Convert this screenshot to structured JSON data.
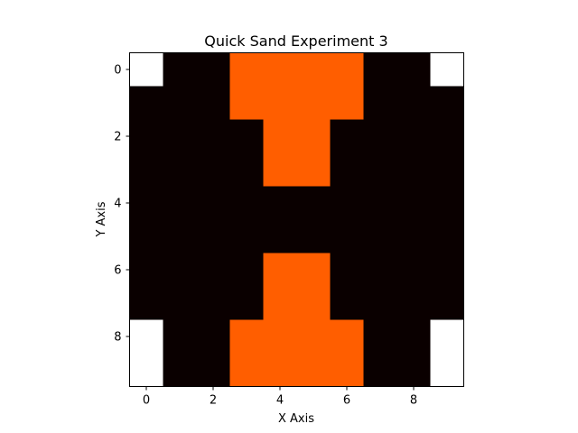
{
  "chart_data": {
    "type": "heatmap",
    "title": "Quick Sand Experiment 3",
    "xlabel": "X Axis",
    "ylabel": "Y Axis",
    "x_ticks": [
      0,
      2,
      4,
      6,
      8
    ],
    "y_ticks": [
      0,
      2,
      4,
      6,
      8
    ],
    "xlim": [
      -0.5,
      9.5
    ],
    "ylim": [
      9.5,
      -0.5
    ],
    "grid": false,
    "colormap": {
      "0": "#ffffff",
      "1": "#0a0000",
      "2": "#ff5e00"
    },
    "grid_values": [
      [
        0,
        1,
        1,
        2,
        2,
        2,
        2,
        1,
        1,
        0
      ],
      [
        1,
        1,
        1,
        2,
        2,
        2,
        2,
        1,
        1,
        1
      ],
      [
        1,
        1,
        1,
        1,
        2,
        2,
        1,
        1,
        1,
        1
      ],
      [
        1,
        1,
        1,
        1,
        2,
        2,
        1,
        1,
        1,
        1
      ],
      [
        1,
        1,
        1,
        1,
        1,
        1,
        1,
        1,
        1,
        1
      ],
      [
        1,
        1,
        1,
        1,
        1,
        1,
        1,
        1,
        1,
        1
      ],
      [
        1,
        1,
        1,
        1,
        2,
        2,
        1,
        1,
        1,
        1
      ],
      [
        1,
        1,
        1,
        1,
        2,
        2,
        1,
        1,
        1,
        1
      ],
      [
        0,
        1,
        1,
        2,
        2,
        2,
        2,
        1,
        1,
        0
      ],
      [
        0,
        1,
        1,
        2,
        2,
        2,
        2,
        1,
        1,
        0
      ]
    ]
  }
}
